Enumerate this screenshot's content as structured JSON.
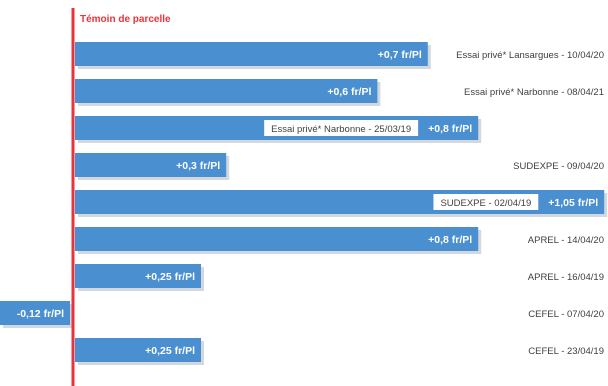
{
  "chart_data": {
    "type": "bar",
    "orientation": "horizontal",
    "reference_label": "Témoin de parcelle",
    "unit": "fr/Pl",
    "categories": [
      "Essai privé* Lansargues - 10/04/20",
      "Essai privé* Narbonne - 08/04/21",
      "Essai privé* Narbonne - 25/03/19",
      "SUDEXPE - 09/04/20",
      "SUDEXPE - 02/04/19",
      "APREL - 14/04/20",
      "APREL - 16/04/19",
      "CEFEL - 07/04/20",
      "CEFEL - 23/04/19"
    ],
    "values": [
      0.7,
      0.6,
      0.8,
      0.3,
      1.05,
      0.8,
      0.25,
      -0.12,
      0.25
    ],
    "value_labels": [
      "+0,7 fr/Pl",
      "+0,6 fr/Pl",
      "+0,8 fr/Pl",
      "+0,3 fr/Pl",
      "+1,05 fr/Pl",
      "+0,8 fr/Pl",
      "+0,25 fr/Pl",
      "-0,12 fr/Pl",
      "+0,25 fr/Pl"
    ],
    "category_label_inside_bar": [
      false,
      false,
      true,
      false,
      true,
      false,
      false,
      false,
      false
    ],
    "colors": {
      "bar": "#4a8fd0",
      "bar_shadow": "#aeb6c2",
      "reference_line": "#e8343a",
      "inner_label_box": "#ffffff"
    },
    "grid": false,
    "legend": "none"
  }
}
